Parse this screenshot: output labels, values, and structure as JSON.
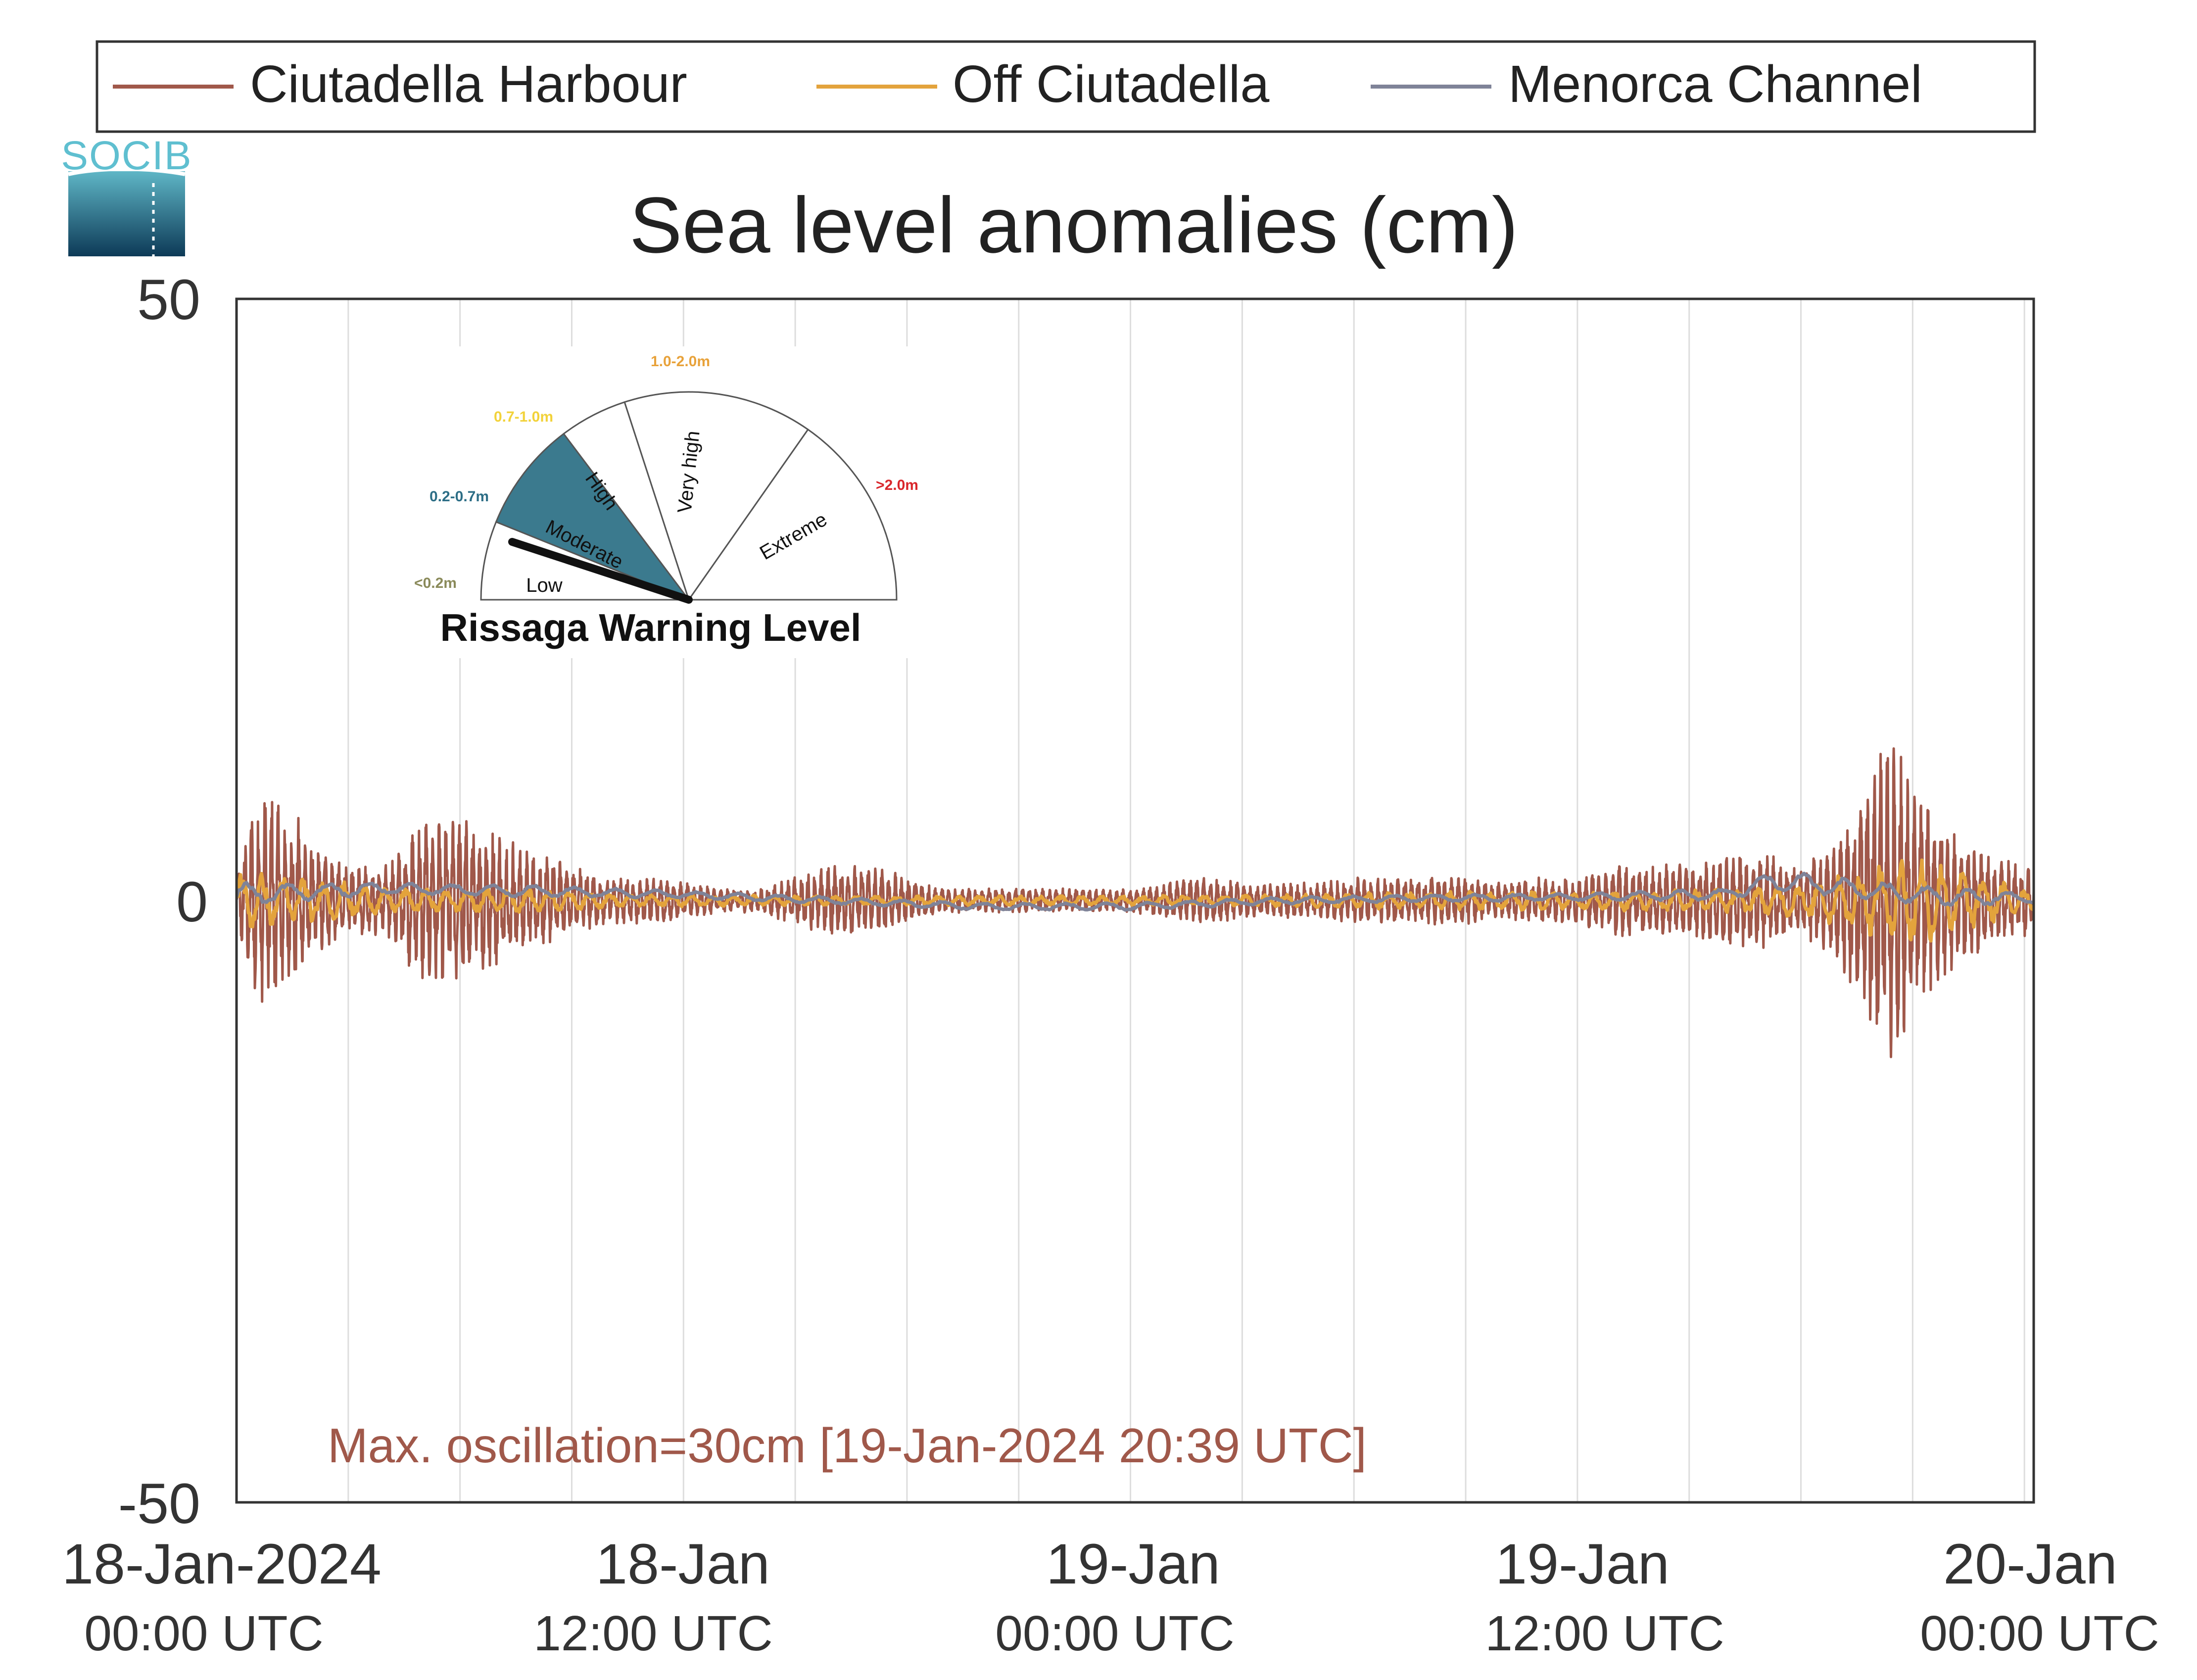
{
  "chart_data": {
    "type": "line",
    "title": "Sea level anomalies (cm)",
    "xlabel": "",
    "ylabel": "",
    "ylim": [
      -50,
      50
    ],
    "xlim": [
      "2024-01-18 00:00",
      "2024-01-20 00:15"
    ],
    "y_ticks": [
      "50",
      "0",
      "-50"
    ],
    "x_ticks": [
      {
        "at": "2024-01-18 00:00",
        "line1": "18-Jan-2024",
        "line2": "00:00 UTC"
      },
      {
        "at": "2024-01-18 12:00",
        "line1": "18-Jan",
        "line2": "12:00 UTC"
      },
      {
        "at": "2024-01-19 00:00",
        "line1": "19-Jan",
        "line2": "00:00 UTC"
      },
      {
        "at": "2024-01-19 12:00",
        "line1": "19-Jan",
        "line2": "12:00 UTC"
      },
      {
        "at": "2024-01-20 00:00",
        "line1": "20-Jan",
        "line2": "00:00 UTC"
      }
    ],
    "grid": "vertical every 3 hours",
    "legend_position": "top",
    "series": [
      {
        "name": "Ciutadella Harbour",
        "color": "#a0584a",
        "x_hours": [
          0,
          0.5,
          1,
          1.5,
          2,
          2.5,
          3,
          4,
          5,
          6,
          7,
          8,
          9,
          10,
          11,
          12,
          13,
          14,
          15,
          16,
          17,
          18,
          19,
          20,
          21,
          22,
          23,
          24,
          25,
          26,
          27,
          28,
          29,
          30,
          31,
          32,
          33,
          34,
          35,
          36,
          37,
          38,
          39,
          40,
          41,
          42,
          43,
          43.5,
          44,
          44.5,
          45,
          45.5,
          46,
          47,
          48
        ],
        "amplitude_cm": [
          2,
          9,
          9,
          8,
          5,
          4,
          3,
          3,
          7,
          7,
          6,
          4,
          3,
          2,
          2,
          1.5,
          1,
          1,
          2,
          3,
          3,
          2,
          1,
          1,
          1,
          1,
          1,
          1,
          1.5,
          2,
          1.5,
          1.5,
          1.5,
          2,
          2,
          2,
          2,
          1.5,
          2,
          2,
          3,
          3,
          3,
          4,
          4,
          3,
          5,
          9,
          13,
          14,
          9,
          8,
          6,
          4,
          3
        ],
        "max_cm": 15,
        "min_cm": -15
      },
      {
        "name": "Off Ciutadella",
        "color": "#e3a33c",
        "x_hours": [
          0,
          2,
          4,
          6,
          8,
          10,
          12,
          16,
          20,
          24,
          28,
          32,
          36,
          40,
          42,
          44,
          45,
          46,
          48
        ],
        "amplitude_cm": [
          2.5,
          2,
          1,
          1,
          1,
          0.6,
          0.5,
          0.4,
          0.4,
          0.4,
          0.5,
          0.8,
          0.8,
          1,
          1.5,
          3,
          4,
          3,
          1
        ],
        "max_cm": 5,
        "min_cm": -6
      },
      {
        "name": "Menorca Channel",
        "color": "#7f8398",
        "x_hours": [
          0,
          4,
          8,
          12,
          16,
          20,
          24,
          28,
          32,
          36,
          40,
          41,
          42,
          44,
          46,
          48
        ],
        "offset_cm": [
          0.5,
          1,
          0.8,
          0.5,
          0,
          -0.5,
          -0.5,
          0,
          0.2,
          0.3,
          0.5,
          1.5,
          1.5,
          0.8,
          0.3,
          0.2
        ],
        "amplitude_cm": [
          1,
          0.5,
          0.5,
          0.3,
          0.3,
          0.3,
          0.3,
          0.3,
          0.3,
          0.3,
          0.5,
          0.8,
          0.8,
          0.8,
          0.8,
          0.5
        ]
      }
    ],
    "annotation": "Max. oscillation=30cm [19-Jan-2024 20:39 UTC]",
    "annotation_color": "#a0584a"
  },
  "logo": {
    "text": "SOCIB"
  },
  "gauge": {
    "title": "Rissaga Warning Level",
    "sectors": [
      {
        "label": "Low",
        "range": "<0.2m",
        "range_color": "#8a8a5a"
      },
      {
        "label": "Moderate",
        "range": "0.2-0.7m",
        "range_color": "#2d6e86",
        "fill": "#3b7a8e"
      },
      {
        "label": "High",
        "range": "0.7-1.0m",
        "range_color": "#f2d23a"
      },
      {
        "label": "Very high",
        "range": "1.0-2.0m",
        "range_color": "#e8a23a"
      },
      {
        "label": "Extreme",
        "range": ">2.0m",
        "range_color": "#d9262b"
      }
    ],
    "active_level": "Moderate"
  }
}
